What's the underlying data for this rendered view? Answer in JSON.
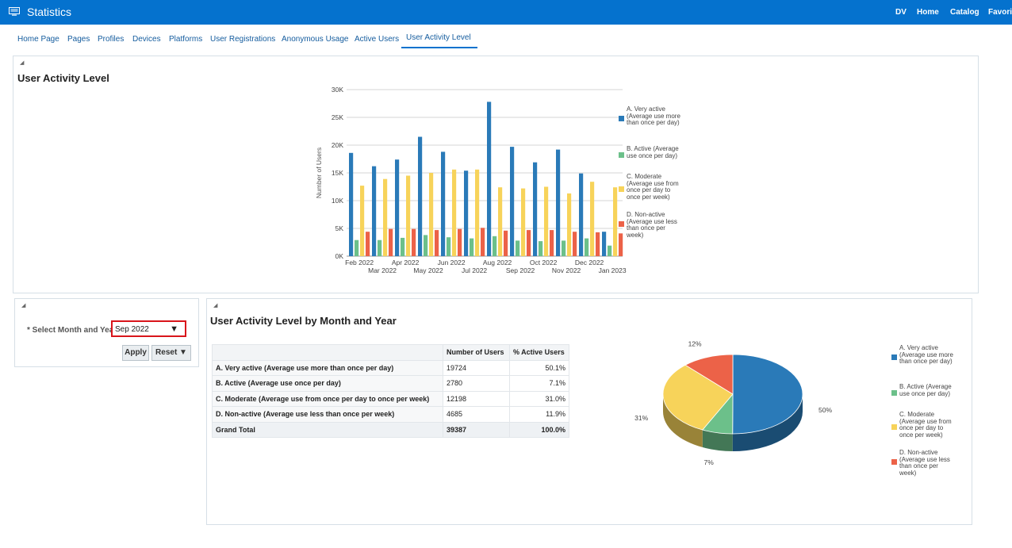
{
  "header": {
    "title": "Statistics",
    "links": [
      "DV",
      "Home",
      "Catalog",
      "Favorites"
    ]
  },
  "tabs": [
    {
      "label": "Home Page"
    },
    {
      "label": "Pages"
    },
    {
      "label": "Profiles"
    },
    {
      "label": "Devices"
    },
    {
      "label": "Platforms"
    },
    {
      "label": "User Registrations"
    },
    {
      "label": "Anonymous Usage"
    },
    {
      "label": "Active Users"
    },
    {
      "label": "User Activity Level",
      "active": true
    }
  ],
  "top_panel": {
    "title": "User Activity Level"
  },
  "colors": {
    "very_active": "#2a7ab8",
    "active": "#6cc08a",
    "moderate": "#f7d35a",
    "non_active": "#ec6248",
    "brand": "#0572ce"
  },
  "prompt": {
    "label": "* Select Month and Year",
    "selected": "Sep 2022",
    "apply_label": "Apply",
    "reset_label": "Reset ▼"
  },
  "bottom_panel": {
    "title": "User Activity Level by Month and Year",
    "table": {
      "headers": [
        "",
        "Number of Users",
        "% Active Users"
      ],
      "rows": [
        {
          "label": "A. Very active (Average use more than once per day)",
          "users": "19724",
          "pct": "50.1%"
        },
        {
          "label": "B. Active (Average use once per day)",
          "users": "2780",
          "pct": "7.1%"
        },
        {
          "label": "C. Moderate (Average use from once per day to once per week)",
          "users": "12198",
          "pct": "31.0%"
        },
        {
          "label": "D. Non-active (Average use less than once per week)",
          "users": "4685",
          "pct": "11.9%"
        }
      ],
      "total": {
        "label": "Grand Total",
        "users": "39387",
        "pct": "100.0%"
      }
    }
  },
  "chart_data": [
    {
      "type": "bar",
      "ylabel": "Number of Users",
      "ylim": [
        0,
        30000
      ],
      "yticks": [
        "0K",
        "5K",
        "10K",
        "15K",
        "20K",
        "25K",
        "30K"
      ],
      "categories": [
        "Feb 2022",
        "Mar 2022",
        "Apr 2022",
        "May 2022",
        "Jun 2022",
        "Jul 2022",
        "Aug 2022",
        "Sep 2022",
        "Oct 2022",
        "Nov 2022",
        "Dec 2022",
        "Jan 2023"
      ],
      "grid": true,
      "legend_position": "right",
      "series": [
        {
          "name": "A. Very active (Average use more than once per day)",
          "color": "#2a7ab8",
          "values": [
            18600,
            16200,
            17400,
            21500,
            18800,
            15400,
            27800,
            19700,
            16900,
            19200,
            14900,
            4400
          ]
        },
        {
          "name": "B. Active (Average use once per day)",
          "color": "#6cc08a",
          "values": [
            2900,
            2900,
            3300,
            3800,
            3400,
            3200,
            3600,
            2800,
            2700,
            2800,
            3200,
            1900
          ]
        },
        {
          "name": "C. Moderate (Average use from once per day to once per week)",
          "color": "#f7d35a",
          "values": [
            12700,
            13900,
            14500,
            15000,
            15600,
            15600,
            12400,
            12200,
            12500,
            11300,
            13400,
            12400
          ]
        },
        {
          "name": "D. Non-active (Average use less than once per week)",
          "color": "#ec6248",
          "values": [
            4400,
            4900,
            4900,
            4700,
            4900,
            5100,
            4600,
            4700,
            4700,
            4400,
            4300,
            4100
          ]
        }
      ]
    },
    {
      "type": "pie",
      "style": "3d",
      "legend_position": "right",
      "slices": [
        {
          "name": "A. Very active (Average use more than once per day)",
          "value": 50.1,
          "label": "50%",
          "color": "#2a7ab8"
        },
        {
          "name": "B. Active (Average use once per day)",
          "value": 7.1,
          "label": "7%",
          "color": "#6cc08a"
        },
        {
          "name": "C. Moderate (Average use from once per day to once per week)",
          "value": 31.0,
          "label": "31%",
          "color": "#f7d35a"
        },
        {
          "name": "D. Non-active (Average use less than once per week)",
          "value": 11.9,
          "label": "12%",
          "color": "#ec6248"
        }
      ]
    }
  ],
  "legend": [
    {
      "label": "A. Very active (Average use more than once per day)",
      "color": "#2a7ab8"
    },
    {
      "label": "B. Active (Average use once per day)",
      "color": "#6cc08a"
    },
    {
      "label": "C. Moderate (Average use from once per day to once per week)",
      "color": "#f7d35a"
    },
    {
      "label": "D. Non-active (Average use less than once per week)",
      "color": "#ec6248"
    }
  ]
}
